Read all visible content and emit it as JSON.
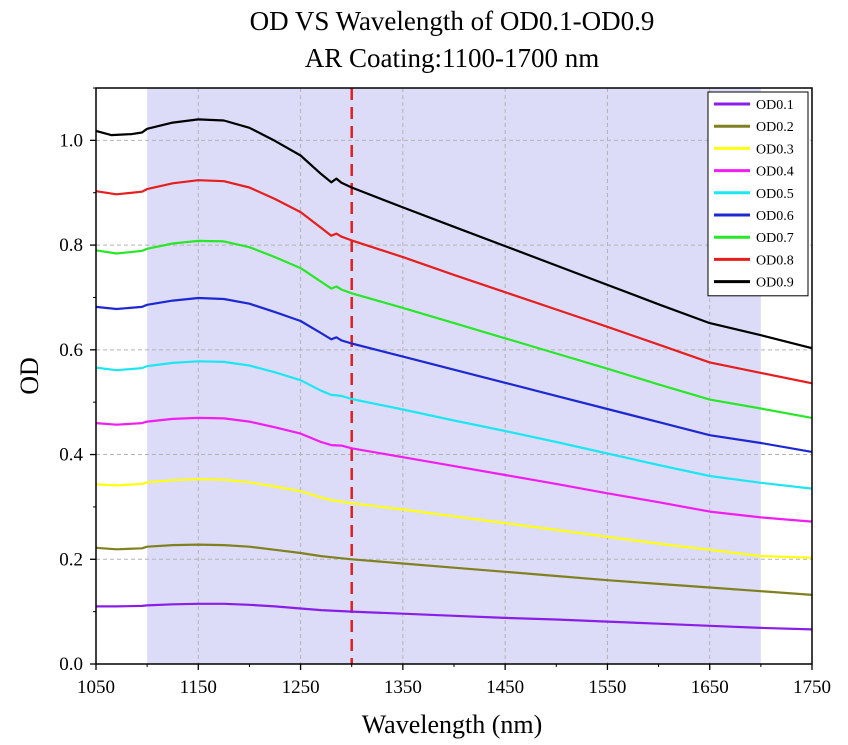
{
  "chart_data": {
    "type": "line",
    "title": [
      "OD VS Wavelength of OD0.1-OD0.9",
      "AR Coating:1100-1700 nm"
    ],
    "xlabel": "Wavelength (nm)",
    "ylabel": "OD",
    "xlim": [
      1050,
      1750
    ],
    "ylim": [
      0.0,
      1.1
    ],
    "xticks": [
      1050,
      1150,
      1250,
      1350,
      1450,
      1550,
      1650,
      1750
    ],
    "xtick_labels": [
      "1050",
      "1150",
      "1250",
      "1350",
      "1450",
      "1550",
      "1650",
      "1750"
    ],
    "yticks": [
      0.0,
      0.2,
      0.4,
      0.6,
      0.8,
      1.0
    ],
    "ytick_labels": [
      "0.0",
      "0.2",
      "0.4",
      "0.6",
      "0.8",
      "1.0"
    ],
    "grid": "dashed",
    "legend_position": "top-right",
    "shaded_band": {
      "x_start": 1100,
      "x_end": 1700,
      "color": "#dcdcf8"
    },
    "reference_line": {
      "x": 1300,
      "color": "#e02020",
      "style": "dashed"
    },
    "series": [
      {
        "name": "OD0.1",
        "color": "#8a1ee6",
        "points": [
          [
            1050,
            0.11
          ],
          [
            1070,
            0.11
          ],
          [
            1095,
            0.111
          ],
          [
            1100,
            0.112
          ],
          [
            1125,
            0.114
          ],
          [
            1150,
            0.115
          ],
          [
            1175,
            0.115
          ],
          [
            1200,
            0.113
          ],
          [
            1225,
            0.11
          ],
          [
            1250,
            0.106
          ],
          [
            1270,
            0.103
          ],
          [
            1280,
            0.102
          ],
          [
            1300,
            0.1
          ],
          [
            1350,
            0.096
          ],
          [
            1400,
            0.092
          ],
          [
            1450,
            0.088
          ],
          [
            1500,
            0.085
          ],
          [
            1550,
            0.081
          ],
          [
            1600,
            0.077
          ],
          [
            1650,
            0.073
          ],
          [
            1700,
            0.069
          ],
          [
            1750,
            0.066
          ]
        ]
      },
      {
        "name": "OD0.2",
        "color": "#808020",
        "points": [
          [
            1050,
            0.222
          ],
          [
            1070,
            0.219
          ],
          [
            1095,
            0.221
          ],
          [
            1100,
            0.224
          ],
          [
            1125,
            0.227
          ],
          [
            1150,
            0.228
          ],
          [
            1175,
            0.227
          ],
          [
            1200,
            0.224
          ],
          [
            1225,
            0.218
          ],
          [
            1250,
            0.212
          ],
          [
            1270,
            0.206
          ],
          [
            1280,
            0.204
          ],
          [
            1300,
            0.2
          ],
          [
            1350,
            0.192
          ],
          [
            1400,
            0.184
          ],
          [
            1450,
            0.176
          ],
          [
            1500,
            0.168
          ],
          [
            1550,
            0.16
          ],
          [
            1600,
            0.153
          ],
          [
            1650,
            0.146
          ],
          [
            1700,
            0.139
          ],
          [
            1750,
            0.132
          ]
        ]
      },
      {
        "name": "OD0.3",
        "color": "#ffff10",
        "points": [
          [
            1050,
            0.343
          ],
          [
            1070,
            0.341
          ],
          [
            1095,
            0.344
          ],
          [
            1100,
            0.347
          ],
          [
            1125,
            0.351
          ],
          [
            1150,
            0.353
          ],
          [
            1175,
            0.352
          ],
          [
            1200,
            0.347
          ],
          [
            1225,
            0.339
          ],
          [
            1250,
            0.33
          ],
          [
            1270,
            0.318
          ],
          [
            1280,
            0.313
          ],
          [
            1300,
            0.307
          ],
          [
            1350,
            0.295
          ],
          [
            1400,
            0.282
          ],
          [
            1450,
            0.269
          ],
          [
            1500,
            0.256
          ],
          [
            1550,
            0.243
          ],
          [
            1600,
            0.23
          ],
          [
            1650,
            0.218
          ],
          [
            1700,
            0.206
          ],
          [
            1750,
            0.203
          ]
        ]
      },
      {
        "name": "OD0.4",
        "color": "#f01ef0",
        "points": [
          [
            1050,
            0.46
          ],
          [
            1070,
            0.457
          ],
          [
            1095,
            0.46
          ],
          [
            1100,
            0.463
          ],
          [
            1125,
            0.468
          ],
          [
            1150,
            0.47
          ],
          [
            1175,
            0.469
          ],
          [
            1200,
            0.463
          ],
          [
            1225,
            0.452
          ],
          [
            1250,
            0.44
          ],
          [
            1270,
            0.424
          ],
          [
            1280,
            0.418
          ],
          [
            1290,
            0.417
          ],
          [
            1300,
            0.412
          ],
          [
            1350,
            0.395
          ],
          [
            1400,
            0.378
          ],
          [
            1450,
            0.361
          ],
          [
            1500,
            0.344
          ],
          [
            1550,
            0.326
          ],
          [
            1600,
            0.309
          ],
          [
            1650,
            0.291
          ],
          [
            1700,
            0.28
          ],
          [
            1750,
            0.272
          ]
        ]
      },
      {
        "name": "OD0.5",
        "color": "#1ee6f0",
        "points": [
          [
            1050,
            0.566
          ],
          [
            1070,
            0.561
          ],
          [
            1095,
            0.565
          ],
          [
            1100,
            0.569
          ],
          [
            1125,
            0.575
          ],
          [
            1150,
            0.578
          ],
          [
            1175,
            0.577
          ],
          [
            1200,
            0.57
          ],
          [
            1225,
            0.557
          ],
          [
            1250,
            0.542
          ],
          [
            1270,
            0.522
          ],
          [
            1280,
            0.514
          ],
          [
            1290,
            0.512
          ],
          [
            1300,
            0.506
          ],
          [
            1350,
            0.486
          ],
          [
            1400,
            0.465
          ],
          [
            1450,
            0.445
          ],
          [
            1500,
            0.424
          ],
          [
            1550,
            0.402
          ],
          [
            1600,
            0.38
          ],
          [
            1650,
            0.359
          ],
          [
            1700,
            0.346
          ],
          [
            1750,
            0.335
          ]
        ]
      },
      {
        "name": "OD0.6",
        "color": "#1e28d2",
        "points": [
          [
            1050,
            0.682
          ],
          [
            1070,
            0.678
          ],
          [
            1095,
            0.682
          ],
          [
            1100,
            0.686
          ],
          [
            1125,
            0.694
          ],
          [
            1150,
            0.699
          ],
          [
            1175,
            0.697
          ],
          [
            1200,
            0.688
          ],
          [
            1225,
            0.672
          ],
          [
            1250,
            0.655
          ],
          [
            1270,
            0.632
          ],
          [
            1280,
            0.62
          ],
          [
            1285,
            0.624
          ],
          [
            1290,
            0.618
          ],
          [
            1300,
            0.612
          ],
          [
            1350,
            0.587
          ],
          [
            1400,
            0.562
          ],
          [
            1450,
            0.537
          ],
          [
            1500,
            0.512
          ],
          [
            1550,
            0.487
          ],
          [
            1600,
            0.462
          ],
          [
            1650,
            0.437
          ],
          [
            1700,
            0.422
          ],
          [
            1750,
            0.405
          ]
        ]
      },
      {
        "name": "OD0.7",
        "color": "#28e628",
        "points": [
          [
            1050,
            0.79
          ],
          [
            1070,
            0.784
          ],
          [
            1095,
            0.789
          ],
          [
            1100,
            0.793
          ],
          [
            1125,
            0.803
          ],
          [
            1150,
            0.808
          ],
          [
            1175,
            0.807
          ],
          [
            1200,
            0.796
          ],
          [
            1225,
            0.777
          ],
          [
            1250,
            0.756
          ],
          [
            1270,
            0.73
          ],
          [
            1280,
            0.717
          ],
          [
            1285,
            0.721
          ],
          [
            1290,
            0.715
          ],
          [
            1300,
            0.708
          ],
          [
            1350,
            0.68
          ],
          [
            1400,
            0.651
          ],
          [
            1450,
            0.622
          ],
          [
            1500,
            0.593
          ],
          [
            1550,
            0.564
          ],
          [
            1600,
            0.534
          ],
          [
            1650,
            0.505
          ],
          [
            1700,
            0.488
          ],
          [
            1750,
            0.47
          ]
        ]
      },
      {
        "name": "OD0.8",
        "color": "#e61e1e",
        "points": [
          [
            1050,
            0.903
          ],
          [
            1070,
            0.897
          ],
          [
            1095,
            0.902
          ],
          [
            1100,
            0.907
          ],
          [
            1125,
            0.918
          ],
          [
            1150,
            0.924
          ],
          [
            1175,
            0.922
          ],
          [
            1200,
            0.91
          ],
          [
            1225,
            0.888
          ],
          [
            1250,
            0.863
          ],
          [
            1270,
            0.833
          ],
          [
            1280,
            0.818
          ],
          [
            1285,
            0.822
          ],
          [
            1290,
            0.816
          ],
          [
            1300,
            0.809
          ],
          [
            1350,
            0.777
          ],
          [
            1400,
            0.743
          ],
          [
            1450,
            0.71
          ],
          [
            1500,
            0.677
          ],
          [
            1550,
            0.644
          ],
          [
            1600,
            0.61
          ],
          [
            1650,
            0.576
          ],
          [
            1700,
            0.556
          ],
          [
            1750,
            0.536
          ]
        ]
      },
      {
        "name": "OD0.9",
        "color": "#000000",
        "points": [
          [
            1050,
            1.018
          ],
          [
            1065,
            1.01
          ],
          [
            1085,
            1.012
          ],
          [
            1095,
            1.015
          ],
          [
            1100,
            1.022
          ],
          [
            1125,
            1.034
          ],
          [
            1150,
            1.04
          ],
          [
            1175,
            1.038
          ],
          [
            1200,
            1.024
          ],
          [
            1225,
            0.999
          ],
          [
            1250,
            0.971
          ],
          [
            1270,
            0.936
          ],
          [
            1280,
            0.92
          ],
          [
            1285,
            0.927
          ],
          [
            1290,
            0.919
          ],
          [
            1300,
            0.91
          ],
          [
            1350,
            0.872
          ],
          [
            1400,
            0.835
          ],
          [
            1450,
            0.798
          ],
          [
            1500,
            0.761
          ],
          [
            1550,
            0.724
          ],
          [
            1600,
            0.687
          ],
          [
            1650,
            0.651
          ],
          [
            1700,
            0.628
          ],
          [
            1750,
            0.603
          ]
        ]
      }
    ]
  }
}
